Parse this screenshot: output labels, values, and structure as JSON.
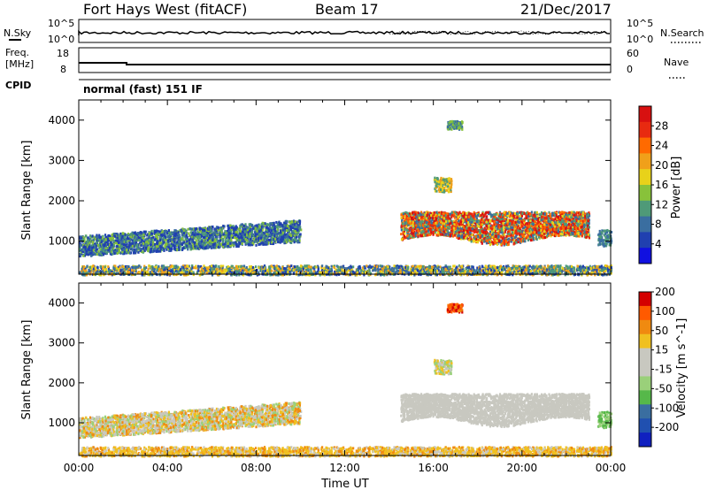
{
  "header": {
    "station": "Fort Hays West (fitACF)",
    "beam": "Beam 17",
    "date": "21/Dec/2017"
  },
  "strip_labels": {
    "nsky": "N.Sky",
    "freq_line1": "Freq.",
    "freq_line2": "[MHz]",
    "cpid": "CPID",
    "nsearch": "N.Search",
    "nave": "Nave",
    "cpid_value": "normal (fast) 151 IF"
  },
  "strip_ticks": {
    "noise_left": [
      "10^5",
      "10^0"
    ],
    "noise_right": [
      "10^5",
      "10^0"
    ],
    "freq_left": [
      "18",
      "8"
    ],
    "freq_right": [
      "60",
      "0"
    ]
  },
  "colors": {
    "power": [
      "#1010e0",
      "#2040b0",
      "#3a6ea0",
      "#4f9a78",
      "#88c23a",
      "#e8d21a",
      "#f0a01a",
      "#ff6a00",
      "#e82a10",
      "#d81010"
    ],
    "velocity": [
      "#d40000",
      "#ff5a00",
      "#f08a10",
      "#f0c020",
      "#c8c8c0",
      "#c8c8c0",
      "#9ad07a",
      "#56b84a",
      "#3a6ea0",
      "#2050b0",
      "#1020c0"
    ]
  },
  "chart_data": [
    {
      "type": "heatmap",
      "name": "power",
      "ylabel": "Slant Range [km]",
      "colorbar_label": "Power [dB]",
      "colorbar_ticks": [
        "4",
        "8",
        "12",
        "16",
        "20",
        "24",
        "28"
      ],
      "ylim": [
        180,
        4500
      ],
      "y_ticks": [
        1000,
        2000,
        3000,
        4000
      ],
      "x_ticks": [
        "00:00",
        "04:00",
        "08:00",
        "12:00",
        "16:00",
        "20:00",
        "00:00"
      ],
      "xlim_hours": [
        0,
        24
      ]
    },
    {
      "type": "heatmap",
      "name": "velocity",
      "xlabel": "Time UT",
      "ylabel": "Slant Range [km]",
      "colorbar_label": "Velocity [m s^-1]",
      "colorbar_ticks": [
        "-200",
        "-100",
        "-50",
        "-15",
        "15",
        "50",
        "100",
        "200"
      ],
      "ylim": [
        180,
        4500
      ],
      "y_ticks": [
        1000,
        2000,
        3000,
        4000
      ],
      "x_ticks": [
        "00:00",
        "04:00",
        "08:00",
        "12:00",
        "16:00",
        "20:00",
        "00:00"
      ],
      "xlim_hours": [
        0,
        24
      ]
    }
  ]
}
